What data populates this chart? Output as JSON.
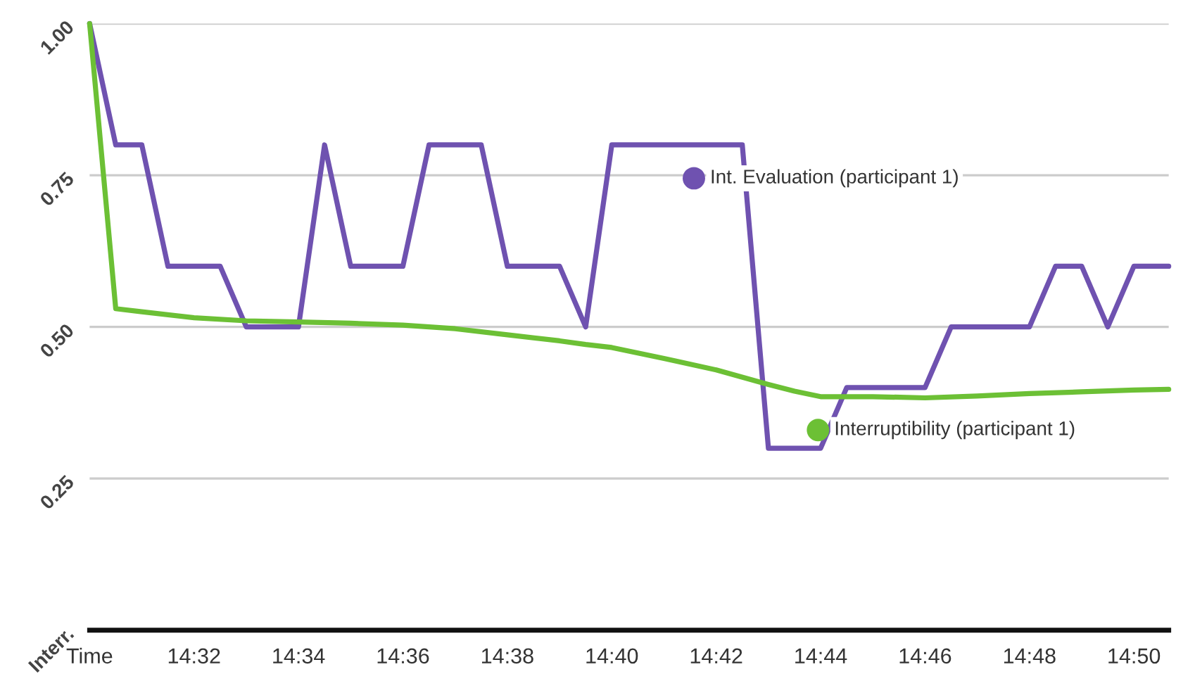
{
  "chart_data": {
    "type": "line",
    "x": [
      14.5,
      14.508333,
      14.516667,
      14.525,
      14.541667,
      14.55,
      14.566667,
      14.575,
      14.583333,
      14.6,
      14.608333,
      14.625,
      14.633333,
      14.65,
      14.658333,
      14.666667,
      14.708333,
      14.716667,
      14.733333,
      14.741667,
      14.766667,
      14.775,
      14.8,
      14.808333,
      14.816667,
      14.825,
      14.833333,
      14.844444
    ],
    "series": [
      {
        "name": "Int. Evaluation (participant 1)",
        "color": "#6f52b0",
        "values": [
          1.0,
          0.8,
          0.8,
          0.6,
          0.6,
          0.5,
          0.5,
          0.8,
          0.6,
          0.6,
          0.8,
          0.8,
          0.6,
          0.6,
          0.5,
          0.8,
          0.8,
          0.3,
          0.3,
          0.4,
          0.4,
          0.5,
          0.5,
          0.6,
          0.6,
          0.5,
          0.6,
          0.6
        ]
      },
      {
        "name": "Interruptibility (participant 1)",
        "color": "#6cc035",
        "x": [
          14.5,
          14.508333,
          14.516667,
          14.533333,
          14.55,
          14.566667,
          14.583333,
          14.6,
          14.616667,
          14.633333,
          14.65,
          14.658333,
          14.666667,
          14.683333,
          14.7,
          14.716667,
          14.725,
          14.733333,
          14.75,
          14.766667,
          14.783333,
          14.8,
          14.816667,
          14.833333,
          14.844444
        ],
        "values": [
          1.0,
          0.53,
          0.525,
          0.515,
          0.51,
          0.508,
          0.506,
          0.503,
          0.497,
          0.487,
          0.477,
          0.471,
          0.466,
          0.448,
          0.429,
          0.405,
          0.394,
          0.385,
          0.385,
          0.383,
          0.386,
          0.39,
          0.393,
          0.396,
          0.397
        ]
      }
    ],
    "xlim": [
      14.5,
      14.844444
    ],
    "xticks": [
      {
        "value": 14.5,
        "label": "Time"
      },
      {
        "value": 14.533333,
        "label": "14:32"
      },
      {
        "value": 14.566667,
        "label": "14:34"
      },
      {
        "value": 14.6,
        "label": "14:36"
      },
      {
        "value": 14.633333,
        "label": "14:38"
      },
      {
        "value": 14.666667,
        "label": "14:40"
      },
      {
        "value": 14.7,
        "label": "14:42"
      },
      {
        "value": 14.733333,
        "label": "14:44"
      },
      {
        "value": 14.766667,
        "label": "14:46"
      },
      {
        "value": 14.8,
        "label": "14:48"
      },
      {
        "value": 14.833333,
        "label": "14:50"
      }
    ],
    "ylim": [
      0,
      1.0
    ],
    "yticks": [
      {
        "value": 0,
        "label": "Interr."
      },
      {
        "value": 0.25,
        "label": "0.25"
      },
      {
        "value": 0.5,
        "label": "0.50"
      },
      {
        "value": 0.75,
        "label": "0.75"
      },
      {
        "value": 1.0,
        "label": "1.00"
      }
    ],
    "grid": "y",
    "legend": "right",
    "marker": "none",
    "line_style": "solid"
  }
}
